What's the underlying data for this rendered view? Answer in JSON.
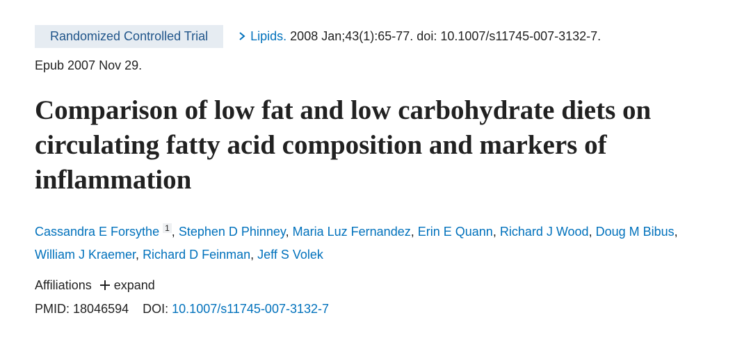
{
  "publication_type": "Randomized Controlled Trial",
  "citation": {
    "journal": "Lipids.",
    "details": "2008 Jan;43(1):65-77. doi: 10.1007/s11745-007-3132-7.",
    "epub": "Epub 2007 Nov 29."
  },
  "title": "Comparison of low fat and low carbohydrate diets on circulating fatty acid composition and markers of inflammation",
  "authors": {
    "separator": ",",
    "list": [
      {
        "name": "Cassandra E Forsythe",
        "affiliation": "1"
      },
      {
        "name": "Stephen D Phinney"
      },
      {
        "name": "Maria Luz Fernandez"
      },
      {
        "name": "Erin E Quann"
      },
      {
        "name": "Richard J Wood"
      },
      {
        "name": "Doug M Bibus"
      },
      {
        "name": "William J Kraemer"
      },
      {
        "name": "Richard D Feinman"
      },
      {
        "name": "Jeff S Volek"
      }
    ]
  },
  "affiliations": {
    "label": "Affiliations",
    "toggle": "expand"
  },
  "identifiers": {
    "pmid_label": "PMID:",
    "pmid": "18046594",
    "doi_label": "DOI:",
    "doi": "10.1007/s11745-007-3132-7"
  }
}
